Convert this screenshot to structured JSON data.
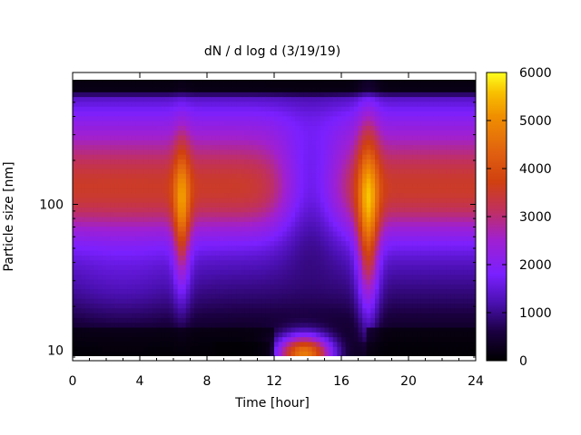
{
  "chart_data": {
    "type": "heatmap",
    "title": "dN / d log d (3/19/19)",
    "xlabel": "Time [hour]",
    "ylabel": "Particle size [nm]",
    "xlim": [
      0,
      24
    ],
    "ylim": [
      8.5,
      800
    ],
    "y_scale": "log",
    "x_ticks": [
      0,
      4,
      8,
      12,
      16,
      20,
      24
    ],
    "y_ticks": [
      10,
      100
    ],
    "colorbar": {
      "range": [
        0,
        6000
      ],
      "ticks": [
        0,
        1000,
        2000,
        3000,
        4000,
        5000,
        6000
      ],
      "colormap": [
        "#000000",
        "#3a0078",
        "#7a20ff",
        "#a020c0",
        "#d03a20",
        "#e06010",
        "#f0a000",
        "#ffff00"
      ]
    },
    "features": [
      {
        "desc": "main accumulation band",
        "x": [
          0,
          24
        ],
        "size_nm": [
          60,
          250
        ],
        "level": 3800
      },
      {
        "desc": "growth event near hour 6.5",
        "x_center": 6.5,
        "size_nm": [
          20,
          300
        ],
        "level": 4800
      },
      {
        "desc": "new particle formation near hour 13-15",
        "x": [
          12,
          16
        ],
        "size_nm": [
          9,
          15
        ],
        "level": 4500
      },
      {
        "desc": "growth event near hour 17.5",
        "x_center": 17.5,
        "size_nm": [
          12,
          300
        ],
        "level": 4800
      }
    ]
  }
}
